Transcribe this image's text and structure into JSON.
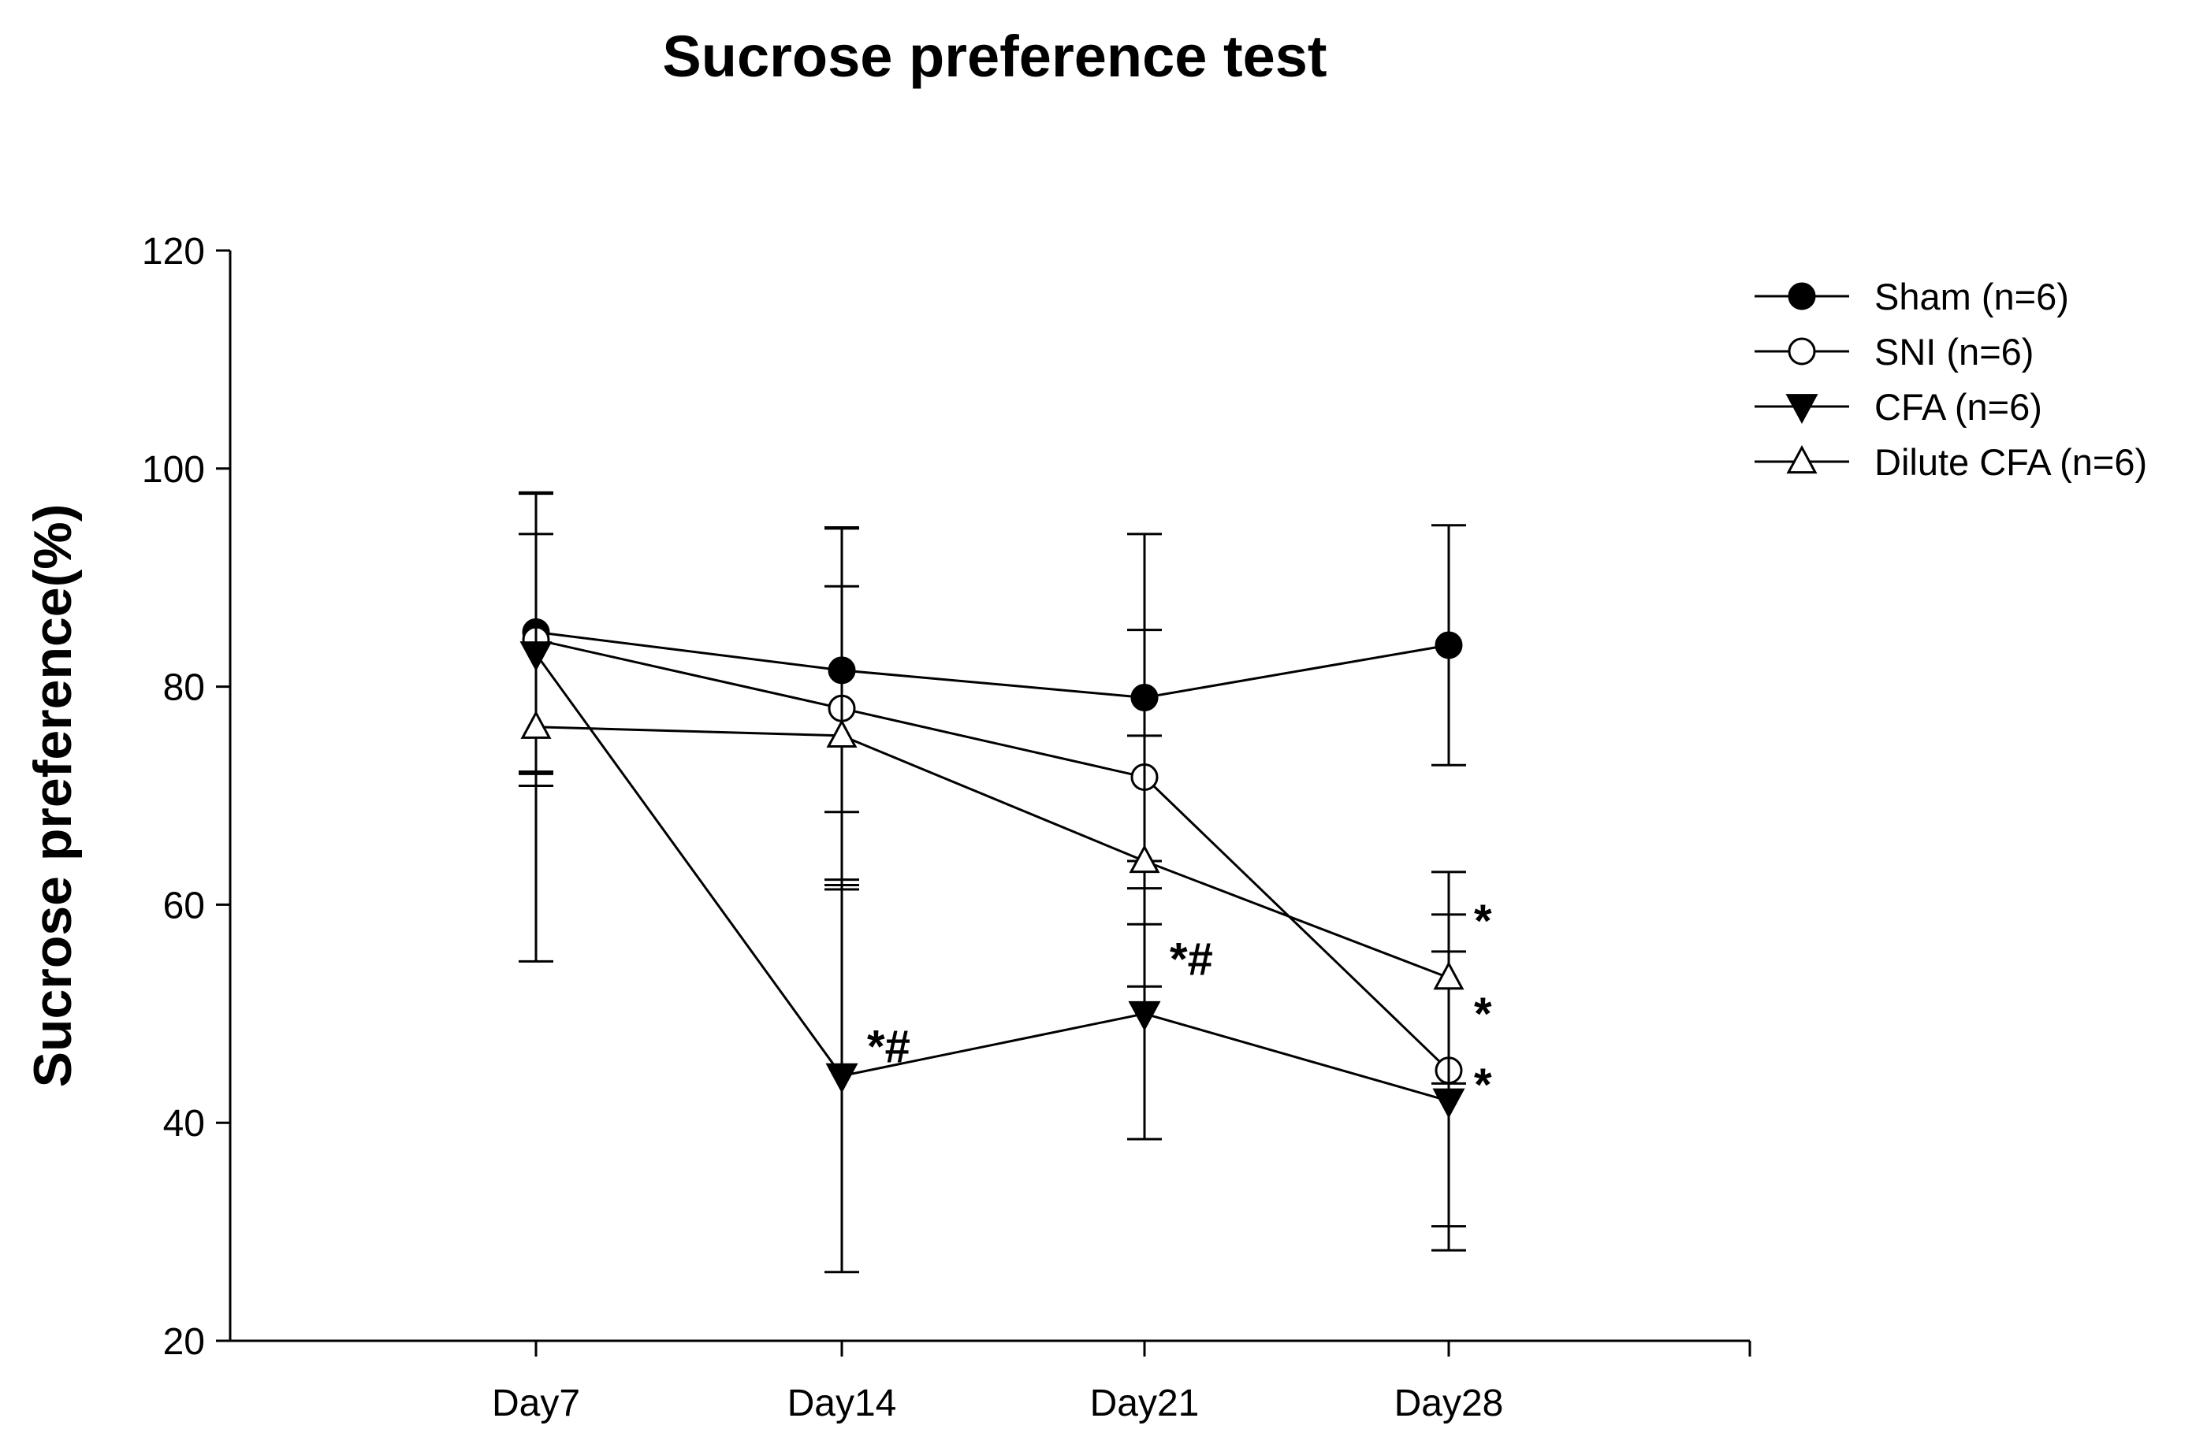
{
  "chart_data": {
    "type": "line",
    "title": "Sucrose preference test",
    "xlabel": "",
    "ylabel": "Sucrose preference(%)",
    "categories": [
      "Day7",
      "Day14",
      "Day21",
      "Day28"
    ],
    "ylim": [
      20,
      120
    ],
    "yticks": [
      20,
      40,
      60,
      80,
      100,
      120
    ],
    "legend_position": "top-right",
    "grid": false,
    "series": [
      {
        "name": "Sham (n=6)",
        "marker": "filled-circle",
        "values": [
          85.0,
          81.5,
          79.0,
          83.8
        ],
        "errors": [
          12.8,
          13.0,
          15.0,
          11.0
        ]
      },
      {
        "name": "SNI (n=6)",
        "marker": "open-circle",
        "values": [
          84.3,
          78.0,
          71.7,
          44.8
        ],
        "errors": [
          13.4,
          16.6,
          13.5,
          14.3
        ]
      },
      {
        "name": "CFA (n=6)",
        "marker": "filled-triangle-down",
        "values": [
          83.0,
          44.3,
          50.0,
          42.0
        ],
        "errors": [
          11.0,
          18.0,
          11.5,
          13.7
        ]
      },
      {
        "name": "Dilute CFA (n=6)",
        "marker": "open-triangle-up",
        "values": [
          76.3,
          75.5,
          64.0,
          53.3
        ],
        "errors": [
          21.5,
          13.7,
          11.5,
          9.7
        ]
      }
    ],
    "annotations": [
      {
        "text": "*#",
        "category": "Day14",
        "y": 47
      },
      {
        "text": "*#",
        "category": "Day21",
        "y": 55
      },
      {
        "text": "*",
        "category": "Day28",
        "y": 58.5
      },
      {
        "text": "*",
        "category": "Day28",
        "y": 50
      },
      {
        "text": "*",
        "category": "Day28",
        "y": 43.5
      }
    ]
  }
}
